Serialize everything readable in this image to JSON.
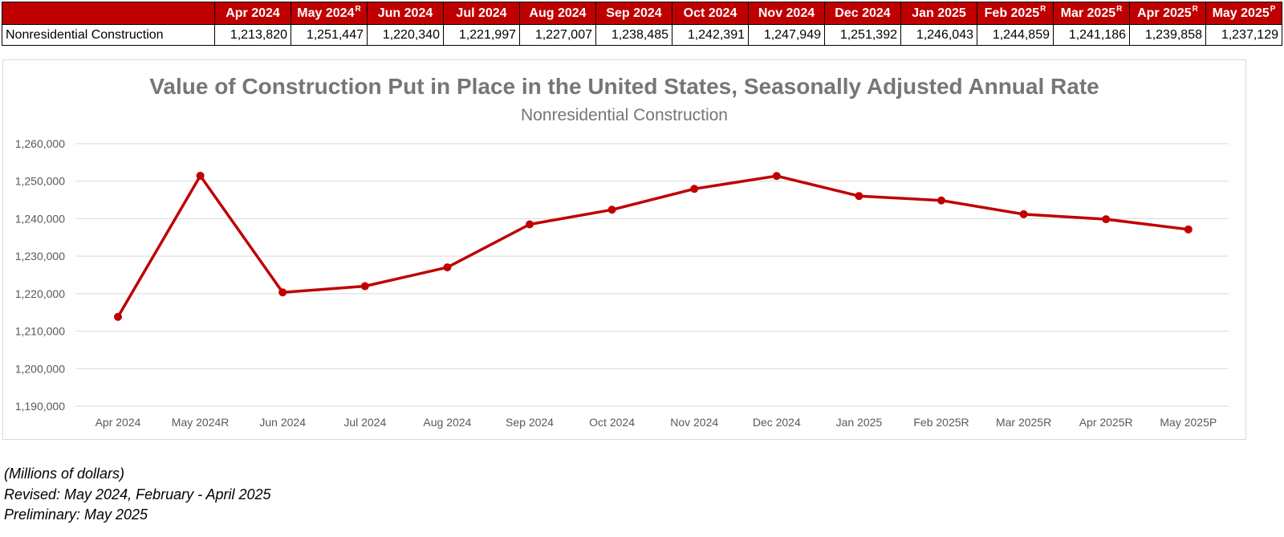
{
  "table": {
    "row_label": "Nonresidential Construction",
    "headers": [
      {
        "label": "Apr 2024",
        "mark": ""
      },
      {
        "label": "May 2024",
        "mark": "R"
      },
      {
        "label": "Jun 2024",
        "mark": ""
      },
      {
        "label": "Jul 2024",
        "mark": ""
      },
      {
        "label": "Aug 2024",
        "mark": ""
      },
      {
        "label": "Sep 2024",
        "mark": ""
      },
      {
        "label": "Oct 2024",
        "mark": ""
      },
      {
        "label": "Nov 2024",
        "mark": ""
      },
      {
        "label": "Dec 2024",
        "mark": ""
      },
      {
        "label": "Jan 2025",
        "mark": ""
      },
      {
        "label": "Feb 2025",
        "mark": "R"
      },
      {
        "label": "Mar 2025",
        "mark": "R"
      },
      {
        "label": "Apr 2025",
        "mark": "R"
      },
      {
        "label": "May 2025",
        "mark": "P"
      }
    ],
    "values": [
      "1,213,820",
      "1,251,447",
      "1,220,340",
      "1,221,997",
      "1,227,007",
      "1,238,485",
      "1,242,391",
      "1,247,949",
      "1,251,392",
      "1,246,043",
      "1,244,859",
      "1,241,186",
      "1,239,858",
      "1,237,129"
    ]
  },
  "chart_data": {
    "type": "line",
    "title": "Value of Construction Put in Place in the United States, Seasonally Adjusted Annual Rate",
    "subtitle": "Nonresidential Construction",
    "categories": [
      "Apr 2024",
      "May 2024R",
      "Jun 2024",
      "Jul 2024",
      "Aug 2024",
      "Sep 2024",
      "Oct 2024",
      "Nov 2024",
      "Dec 2024",
      "Jan 2025",
      "Feb 2025R",
      "Mar 2025R",
      "Apr 2025R",
      "May 2025P"
    ],
    "series": [
      {
        "values": [
          1213820,
          1251447,
          1220340,
          1221997,
          1227007,
          1238485,
          1242391,
          1247949,
          1251392,
          1246043,
          1244859,
          1241186,
          1239858,
          1237129
        ]
      }
    ],
    "ylim": [
      1190000,
      1260000
    ],
    "yticks": [
      1190000,
      1200000,
      1210000,
      1220000,
      1230000,
      1240000,
      1250000,
      1260000
    ],
    "ytick_labels": [
      "1,190,000",
      "1,200,000",
      "1,210,000",
      "1,220,000",
      "1,230,000",
      "1,240,000",
      "1,250,000",
      "1,260,000"
    ],
    "grid": true,
    "legend": "none",
    "line_color": "#c00000"
  },
  "notes": {
    "units": "(Millions of dollars)",
    "revised": "Revised: May 2024, February - April 2025",
    "preliminary": "Preliminary: May 2025"
  },
  "colors": {
    "header_bg": "#c00000",
    "header_text": "#ffffff",
    "title_text": "#767676",
    "series_line": "#c00000"
  }
}
